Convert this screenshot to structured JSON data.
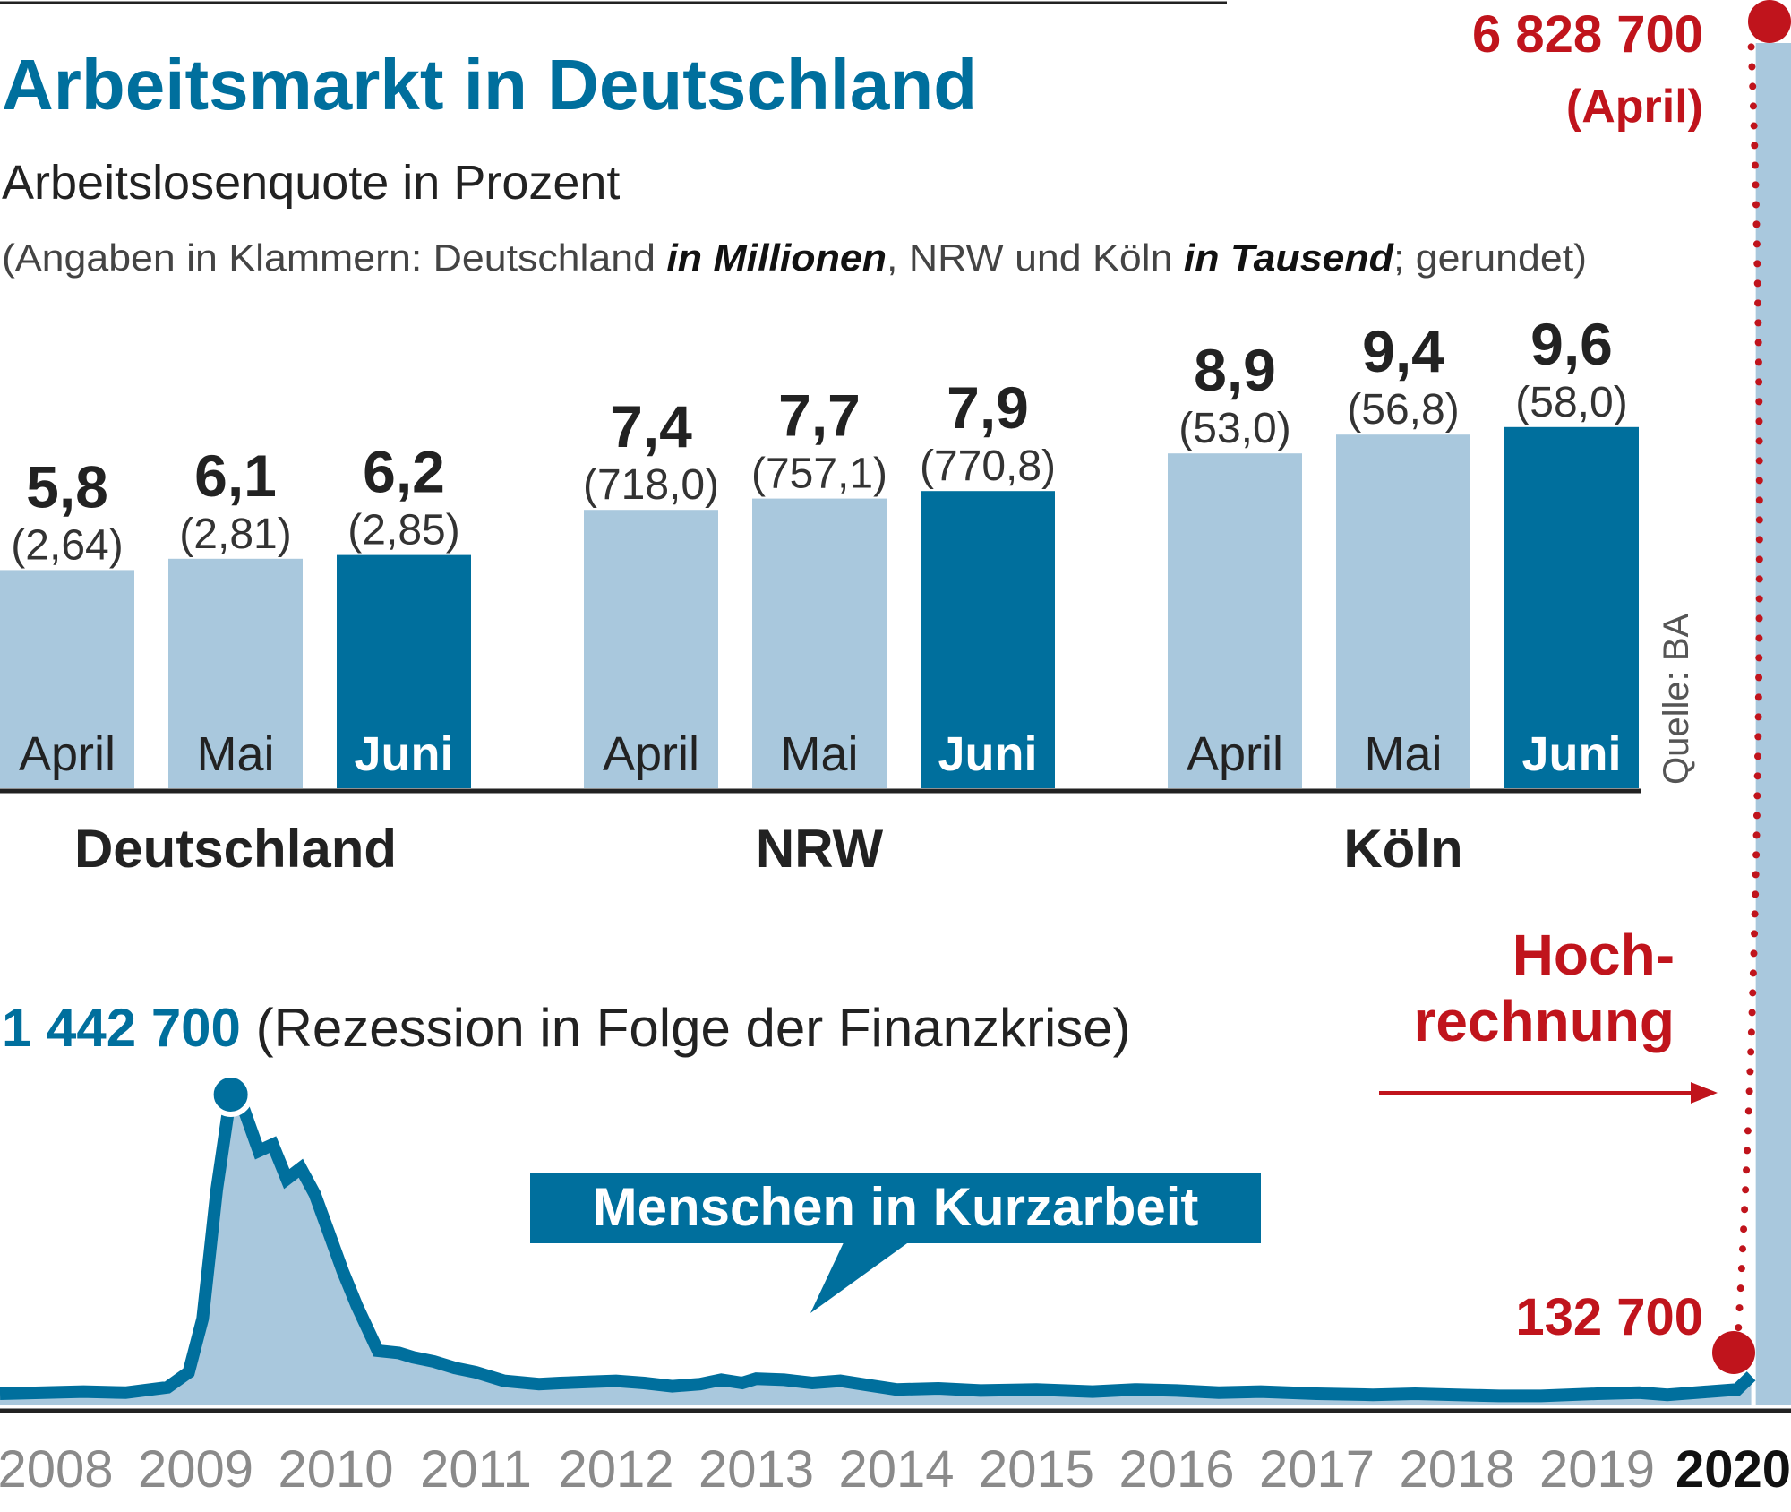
{
  "header": {
    "title": "Arbeitsmarkt in Deutschland",
    "subtitle": "Arbeitslosenquote in Prozent",
    "note_prefix": "(Angaben in Klammern: Deutschland ",
    "note_bold1": "in Millionen",
    "note_mid": ", NRW und Köln ",
    "note_bold2": "in Tausend",
    "note_suffix": "; gerundet)"
  },
  "source": "Quelle: BA",
  "colors": {
    "accent": "#006f9d",
    "light": "#a9c8dd",
    "red": "#c0141c",
    "axis": "#222222",
    "year": "#8a8a8a"
  },
  "chart_data": [
    {
      "type": "bar",
      "title": "Arbeitslosenquote in Prozent",
      "groups": [
        {
          "name": "Deutschland",
          "bars": [
            {
              "month": "April",
              "value": 5.8,
              "label": "5,8",
              "sub": "(2,64)",
              "highlight": false
            },
            {
              "month": "Mai",
              "value": 6.1,
              "label": "6,1",
              "sub": "(2,81)",
              "highlight": false
            },
            {
              "month": "Juni",
              "value": 6.2,
              "label": "6,2",
              "sub": "(2,85)",
              "highlight": true
            }
          ]
        },
        {
          "name": "NRW",
          "bars": [
            {
              "month": "April",
              "value": 7.4,
              "label": "7,4",
              "sub": "(718,0)",
              "highlight": false
            },
            {
              "month": "Mai",
              "value": 7.7,
              "label": "7,7",
              "sub": "(757,1)",
              "highlight": false
            },
            {
              "month": "Juni",
              "value": 7.9,
              "label": "7,9",
              "sub": "(770,8)",
              "highlight": true
            }
          ]
        },
        {
          "name": "Köln",
          "bars": [
            {
              "month": "April",
              "value": 8.9,
              "label": "8,9",
              "sub": "(53,0)",
              "highlight": false
            },
            {
              "month": "Mai",
              "value": 9.4,
              "label": "9,4",
              "sub": "(56,8)",
              "highlight": false
            },
            {
              "month": "Juni",
              "value": 9.6,
              "label": "9,6",
              "sub": "(58,0)",
              "highlight": true
            }
          ]
        }
      ]
    },
    {
      "type": "area",
      "series_name": "Menschen in Kurzarbeit",
      "x_ticks": [
        "2008",
        "2009",
        "2010",
        "2011",
        "2012",
        "2013",
        "2014",
        "2015",
        "2016",
        "2017",
        "2018",
        "2019",
        "2020"
      ],
      "ylim": [
        0,
        6828700
      ],
      "points": [
        [
          2008.0,
          50000
        ],
        [
          2008.2,
          60000
        ],
        [
          2008.5,
          55000
        ],
        [
          2008.8,
          80000
        ],
        [
          2008.95,
          150000
        ],
        [
          2009.05,
          400000
        ],
        [
          2009.15,
          1000000
        ],
        [
          2009.25,
          1442700
        ],
        [
          2009.33,
          1400000
        ],
        [
          2009.45,
          1180000
        ],
        [
          2009.55,
          1210000
        ],
        [
          2009.65,
          1050000
        ],
        [
          2009.75,
          1100000
        ],
        [
          2009.85,
          980000
        ],
        [
          2009.95,
          800000
        ],
        [
          2010.05,
          620000
        ],
        [
          2010.15,
          460000
        ],
        [
          2010.3,
          250000
        ],
        [
          2010.45,
          240000
        ],
        [
          2010.55,
          220000
        ],
        [
          2010.7,
          200000
        ],
        [
          2010.85,
          170000
        ],
        [
          2011.0,
          150000
        ],
        [
          2011.2,
          110000
        ],
        [
          2011.45,
          95000
        ],
        [
          2011.6,
          100000
        ],
        [
          2011.8,
          105000
        ],
        [
          2012.0,
          110000
        ],
        [
          2012.2,
          100000
        ],
        [
          2012.4,
          85000
        ],
        [
          2012.6,
          95000
        ],
        [
          2012.75,
          115000
        ],
        [
          2012.9,
          100000
        ],
        [
          2013.0,
          120000
        ],
        [
          2013.2,
          115000
        ],
        [
          2013.4,
          100000
        ],
        [
          2013.6,
          110000
        ],
        [
          2013.8,
          90000
        ],
        [
          2014.0,
          70000
        ],
        [
          2014.3,
          75000
        ],
        [
          2014.6,
          65000
        ],
        [
          2015.0,
          70000
        ],
        [
          2015.4,
          60000
        ],
        [
          2015.7,
          70000
        ],
        [
          2016.0,
          65000
        ],
        [
          2016.3,
          55000
        ],
        [
          2016.6,
          60000
        ],
        [
          2017.0,
          50000
        ],
        [
          2017.4,
          45000
        ],
        [
          2017.7,
          50000
        ],
        [
          2018.0,
          45000
        ],
        [
          2018.3,
          40000
        ],
        [
          2018.6,
          40000
        ],
        [
          2019.0,
          50000
        ],
        [
          2019.3,
          55000
        ],
        [
          2019.5,
          45000
        ],
        [
          2019.8,
          60000
        ],
        [
          2020.0,
          70000
        ],
        [
          2020.1,
          132700
        ]
      ],
      "peak": {
        "value": 1442700,
        "label": "1 442 700",
        "note": "(Rezession in Folge der Finanzkrise)"
      },
      "last": {
        "value": 132700,
        "label": "132 700"
      },
      "projection": {
        "value": 6828700,
        "label": "6 828 700",
        "sublabel": "(April)",
        "note_line1": "Hoch-",
        "note_line2": "rechnung"
      },
      "label_box": "Menschen in Kurzarbeit"
    }
  ]
}
